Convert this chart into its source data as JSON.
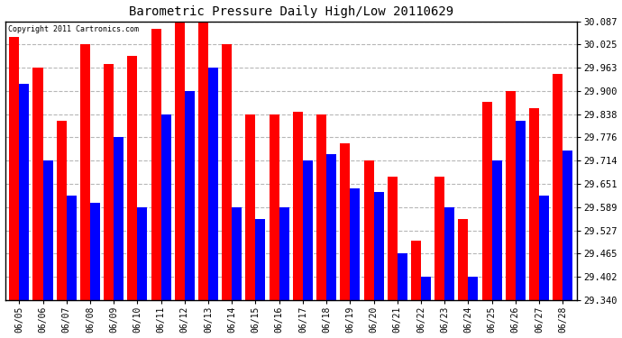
{
  "title": "Barometric Pressure Daily High/Low 20110629",
  "copyright": "Copyright 2011 Cartronics.com",
  "dates": [
    "06/05",
    "06/06",
    "06/07",
    "06/08",
    "06/09",
    "06/10",
    "06/11",
    "06/12",
    "06/13",
    "06/14",
    "06/15",
    "06/16",
    "06/17",
    "06/18",
    "06/19",
    "06/20",
    "06/21",
    "06/22",
    "06/23",
    "06/24",
    "06/25",
    "06/26",
    "06/27",
    "06/28"
  ],
  "highs": [
    30.045,
    29.963,
    29.82,
    30.025,
    29.972,
    29.993,
    30.067,
    30.085,
    30.087,
    30.025,
    29.838,
    29.838,
    29.845,
    29.838,
    29.76,
    29.714,
    29.67,
    29.5,
    29.67,
    29.557,
    29.87,
    29.9,
    29.855,
    29.945
  ],
  "lows": [
    29.92,
    29.714,
    29.62,
    29.6,
    29.776,
    29.589,
    29.838,
    29.9,
    29.963,
    29.589,
    29.557,
    29.59,
    29.714,
    29.73,
    29.64,
    29.63,
    29.465,
    29.402,
    29.59,
    29.402,
    29.714,
    29.82,
    29.62,
    29.74
  ],
  "high_color": "#ff0000",
  "low_color": "#0000ff",
  "bg_color": "#ffffff",
  "grid_color": "#b0b0b0",
  "yticks": [
    29.34,
    29.402,
    29.465,
    29.527,
    29.589,
    29.651,
    29.714,
    29.776,
    29.838,
    29.9,
    29.963,
    30.025,
    30.087
  ],
  "ymin": 29.34,
  "ymax": 30.087,
  "bar_width": 0.42
}
